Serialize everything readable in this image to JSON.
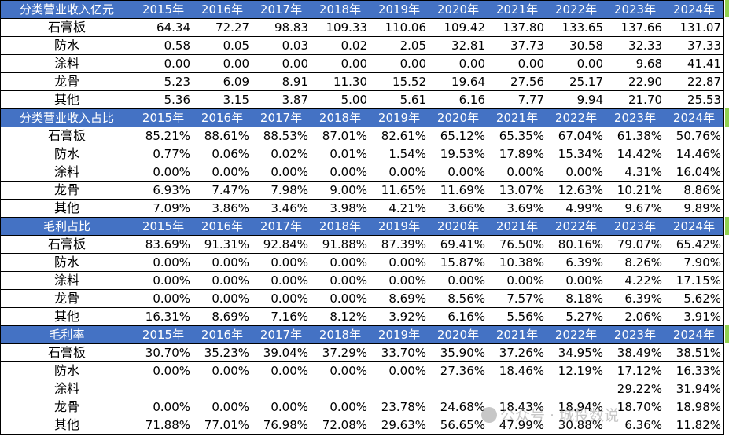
{
  "years": [
    "2015年",
    "2016年",
    "2017年",
    "2018年",
    "2019年",
    "2020年",
    "2021年",
    "2022年",
    "2023年",
    "2024年"
  ],
  "sections": [
    {
      "title": "分类营业收入亿元",
      "rows": [
        {
          "label": "石膏板",
          "values": [
            "64.34",
            "72.27",
            "98.83",
            "109.33",
            "110.06",
            "109.42",
            "137.80",
            "133.65",
            "137.66",
            "131.07"
          ]
        },
        {
          "label": "防水",
          "values": [
            "0.58",
            "0.05",
            "0.03",
            "0.02",
            "2.05",
            "32.81",
            "37.73",
            "30.58",
            "32.33",
            "37.33"
          ]
        },
        {
          "label": "涂料",
          "values": [
            "0.00",
            "0.00",
            "0.00",
            "0.00",
            "0.00",
            "0.00",
            "0.00",
            "0.00",
            "9.68",
            "41.41"
          ]
        },
        {
          "label": "龙骨",
          "values": [
            "5.23",
            "6.09",
            "8.91",
            "11.30",
            "15.52",
            "19.64",
            "27.56",
            "25.17",
            "22.90",
            "22.87"
          ]
        },
        {
          "label": "其他",
          "values": [
            "5.36",
            "3.15",
            "3.87",
            "5.00",
            "5.61",
            "6.16",
            "7.77",
            "9.94",
            "21.70",
            "25.53"
          ]
        }
      ]
    },
    {
      "title": "分类营业收入占比",
      "rows": [
        {
          "label": "石膏板",
          "values": [
            "85.21%",
            "88.61%",
            "88.53%",
            "87.01%",
            "82.61%",
            "65.12%",
            "65.35%",
            "67.04%",
            "61.38%",
            "50.76%"
          ]
        },
        {
          "label": "防水",
          "values": [
            "0.77%",
            "0.06%",
            "0.02%",
            "0.01%",
            "1.54%",
            "19.53%",
            "17.89%",
            "15.34%",
            "14.42%",
            "14.46%"
          ]
        },
        {
          "label": "涂料",
          "values": [
            "0.00%",
            "0.00%",
            "0.00%",
            "0.00%",
            "0.00%",
            "0.00%",
            "0.00%",
            "0.00%",
            "4.31%",
            "16.04%"
          ]
        },
        {
          "label": "龙骨",
          "values": [
            "6.93%",
            "7.47%",
            "7.98%",
            "9.00%",
            "11.65%",
            "11.69%",
            "13.07%",
            "12.63%",
            "10.21%",
            "8.86%"
          ]
        },
        {
          "label": "其他",
          "values": [
            "7.09%",
            "3.86%",
            "3.46%",
            "3.98%",
            "4.21%",
            "3.66%",
            "3.69%",
            "4.99%",
            "9.67%",
            "9.89%"
          ]
        }
      ]
    },
    {
      "title": "毛利占比",
      "rows": [
        {
          "label": "石膏板",
          "values": [
            "83.69%",
            "91.31%",
            "92.84%",
            "91.88%",
            "87.39%",
            "69.41%",
            "76.50%",
            "80.16%",
            "79.07%",
            "65.42%"
          ]
        },
        {
          "label": "防水",
          "values": [
            "0.00%",
            "0.00%",
            "0.00%",
            "0.00%",
            "0.00%",
            "15.87%",
            "10.38%",
            "6.39%",
            "8.26%",
            "7.90%"
          ]
        },
        {
          "label": "涂料",
          "values": [
            "0.00%",
            "0.00%",
            "0.00%",
            "0.00%",
            "0.00%",
            "0.00%",
            "0.00%",
            "0.00%",
            "4.22%",
            "17.15%"
          ]
        },
        {
          "label": "龙骨",
          "values": [
            "0.00%",
            "0.00%",
            "0.00%",
            "0.00%",
            "8.69%",
            "8.56%",
            "7.57%",
            "8.18%",
            "6.39%",
            "5.62%"
          ]
        },
        {
          "label": "其他",
          "values": [
            "16.31%",
            "8.69%",
            "7.16%",
            "8.12%",
            "3.92%",
            "6.16%",
            "5.56%",
            "5.27%",
            "2.06%",
            "3.91%"
          ]
        }
      ]
    },
    {
      "title": "毛利率",
      "rows": [
        {
          "label": "石膏板",
          "values": [
            "30.70%",
            "35.23%",
            "39.04%",
            "37.29%",
            "33.70%",
            "35.90%",
            "37.26%",
            "34.95%",
            "38.49%",
            "38.51%"
          ]
        },
        {
          "label": "防水",
          "values": [
            "0.00%",
            "0.00%",
            "0.00%",
            "0.00%",
            "0.00%",
            "27.36%",
            "18.46%",
            "12.19%",
            "17.12%",
            "16.33%"
          ]
        },
        {
          "label": "涂料",
          "values": [
            "",
            "",
            "",
            "",
            "",
            "",
            "",
            "",
            "29.22%",
            "31.94%"
          ]
        },
        {
          "label": "龙骨",
          "values": [
            "0.00%",
            "0.00%",
            "0.00%",
            "0.00%",
            "23.78%",
            "24.68%",
            "18.43%",
            "18.94%",
            "18.70%",
            "18.98%"
          ]
        },
        {
          "label": "其他",
          "values": [
            "71.88%",
            "77.01%",
            "76.98%",
            "72.08%",
            "29.63%",
            "56.65%",
            "47.99%",
            "30.88%",
            "6.36%",
            "11.82%"
          ]
        }
      ]
    }
  ],
  "watermark": "公众号 · 城投数说"
}
